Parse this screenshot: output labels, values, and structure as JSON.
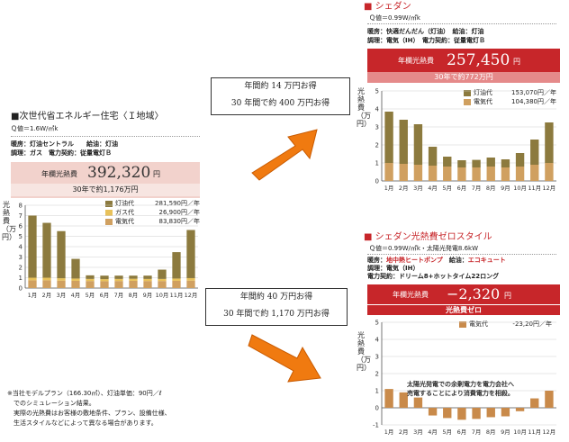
{
  "left": {
    "title": "■次世代省エネルギー住宅〈Ｉ地域〉",
    "q_value": "Ｑ値＝1.6W/㎡k",
    "spec1": "暖房：灯油セントラル　　給油：灯油",
    "spec2": "調理：ガス　電力契約：従量電灯Ｂ",
    "annual_label": "年欄光熱費",
    "annual_value": "392,320",
    "annual_unit": "円",
    "thirty_years": "30年で約1,176万円",
    "y_axis_label": "光熱費（万円）"
  },
  "sedan": {
    "title": "■ シェダン",
    "q_value": "Ｑ値＝0.99W/㎡k",
    "spec1": "暖房：快適だんだん（灯油）　給油：灯油",
    "spec2": "調理：電気（IH）　電力契約：従量電灯Ｂ",
    "annual_label": "年欄光熱費",
    "annual_value": "257,450",
    "annual_unit": "円",
    "thirty_years": "30年で約772万円",
    "y_axis_label": "光熱費（万円）"
  },
  "zero": {
    "title": "■ シェダン光熱費ゼロスタイル",
    "q_value": "Ｑ値＝0.99W/㎡k・太陽光発電8.6kW",
    "spec1_label": "暖房：",
    "spec1_heating": "地中熱ヒートポンプ",
    "spec1_mid": "　給油：",
    "spec1_hotwater": "エコキュート",
    "spec2": "調理：電気（IH）",
    "spec3": "電力契約：ドリーム8+ホットタイム22ロング",
    "annual_label": "年欄光熱費",
    "annual_value": "−2,320",
    "annual_unit": "円",
    "zero_badge": "光熱費ゼロ",
    "y_axis_label": "光熱費（万円）",
    "annotation_line1": "太陽光発電での余剰電力を電力会社へ",
    "annotation_line2": "売電することにより消費電力を相殺。"
  },
  "callout_top": {
    "line1": "年間約 14 万円お得",
    "line2": "30 年間で約 400 万円お得"
  },
  "callout_bottom": {
    "line1": "年間約 40 万円お得",
    "line2": "30 年間で約 1,170 万円お得"
  },
  "notes": {
    "line1": "※当社モデルプラン（166.30㎡）、灯油単価：90円／ℓ",
    "line2": "　でのシミュレーション結果。",
    "line3": "　実際の光熱費はお客様の敷地条件、プラン、設備仕様、",
    "line4": "　生活スタイルなどによって異なる場合があります。"
  },
  "colors": {
    "kerosene": "#8c7a3e",
    "gas": "#e8c15a",
    "electric": "#d0a060",
    "electric_zero": "#c98a4a",
    "accent_red": "#c7262a",
    "band_pink": "#f2d2cc",
    "band_red_dark": "#c7262a",
    "band_red_light": "#e58a8a",
    "arrow_orange": "#f07a10"
  },
  "chart_data": [
    {
      "type": "bar",
      "stacked": true,
      "categories": [
        "1月",
        "2月",
        "3月",
        "4月",
        "5月",
        "6月",
        "7月",
        "8月",
        "9月",
        "10月",
        "11月",
        "12月"
      ],
      "ylim": [
        0,
        8
      ],
      "yticks": [
        0,
        1,
        2,
        3,
        4,
        5,
        6,
        7,
        8
      ],
      "grid": true,
      "series": [
        {
          "name": "電気代",
          "legend_value": "83,830円／年",
          "color": "#d0a060",
          "values": [
            0.75,
            0.75,
            0.72,
            0.7,
            0.68,
            0.66,
            0.68,
            0.7,
            0.68,
            0.68,
            0.7,
            0.72
          ]
        },
        {
          "name": "ガス代",
          "legend_value": "26,900円／年",
          "color": "#e8c15a",
          "values": [
            0.25,
            0.25,
            0.23,
            0.22,
            0.2,
            0.2,
            0.2,
            0.2,
            0.2,
            0.2,
            0.22,
            0.24
          ]
        },
        {
          "name": "灯油代",
          "legend_value": "281,590円／年",
          "color": "#8c7a3e",
          "values": [
            6.0,
            5.3,
            4.55,
            1.9,
            0.35,
            0.34,
            0.32,
            0.3,
            0.32,
            0.9,
            2.55,
            4.65
          ]
        }
      ]
    },
    {
      "type": "bar",
      "stacked": true,
      "categories": [
        "1月",
        "2月",
        "3月",
        "4月",
        "5月",
        "6月",
        "7月",
        "8月",
        "9月",
        "10月",
        "11月",
        "12月"
      ],
      "ylim": [
        0,
        5
      ],
      "yticks": [
        0,
        1,
        2,
        3,
        4,
        5
      ],
      "grid": true,
      "series": [
        {
          "name": "電気代",
          "legend_value": "104,380円／年",
          "color": "#d0a060",
          "values": [
            1.0,
            0.95,
            0.9,
            0.85,
            0.8,
            0.75,
            0.75,
            0.8,
            0.75,
            0.8,
            0.9,
            1.0
          ]
        },
        {
          "name": "灯油代",
          "legend_value": "153,070円／年",
          "color": "#8c7a3e",
          "values": [
            2.85,
            2.45,
            2.25,
            1.05,
            0.55,
            0.4,
            0.42,
            0.5,
            0.45,
            0.75,
            1.4,
            2.25
          ]
        }
      ]
    },
    {
      "type": "bar",
      "categories": [
        "1月",
        "2月",
        "3月",
        "4月",
        "5月",
        "6月",
        "7月",
        "8月",
        "9月",
        "10月",
        "11月",
        "12月"
      ],
      "ylim": [
        -1,
        5
      ],
      "yticks": [
        -1,
        0,
        1,
        2,
        3,
        4,
        5
      ],
      "grid": true,
      "series": [
        {
          "name": "電気代",
          "legend_value": "-23,20円／年",
          "color": "#c98a4a",
          "values": [
            1.1,
            0.9,
            0.6,
            -0.45,
            -0.6,
            -0.7,
            -0.65,
            -0.55,
            -0.5,
            -0.2,
            0.55,
            1.0
          ]
        }
      ]
    }
  ]
}
